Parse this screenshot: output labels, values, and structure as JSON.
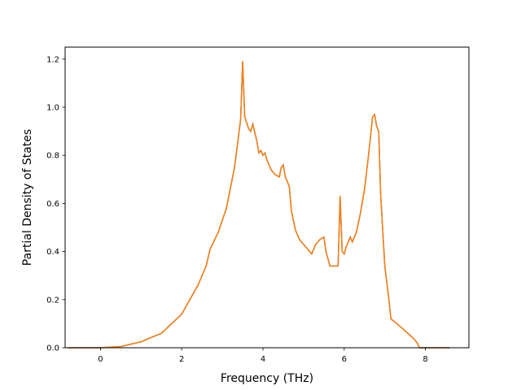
{
  "chart_data": {
    "type": "line",
    "title": "",
    "xlabel": "Frequency (THz)",
    "ylabel": "Partial Density of States",
    "xlim": [
      -0.87,
      9.07
    ],
    "ylim": [
      0.0,
      1.25
    ],
    "x_ticks": [
      0,
      2,
      4,
      6,
      8
    ],
    "x_tick_labels": [
      "0",
      "2",
      "4",
      "6",
      "8"
    ],
    "y_ticks": [
      0.0,
      0.2,
      0.4,
      0.6,
      0.8,
      1.0,
      1.2
    ],
    "y_tick_labels": [
      "0.0",
      "0.2",
      "0.4",
      "0.6",
      "0.8",
      "1.0",
      "1.2"
    ],
    "grid": false,
    "legend": "none",
    "colors": {
      "overlay_series": "#ff7f0e",
      "base_series": "#1f77b4"
    },
    "series": [
      {
        "x": [
          -0.8,
          0.0,
          0.5,
          1.0,
          1.5,
          2.0,
          2.4,
          2.6,
          2.7,
          2.9,
          3.1,
          3.3,
          3.45,
          3.5,
          3.55,
          3.65,
          3.7,
          3.75,
          3.85,
          3.9,
          3.95,
          4.0,
          4.05,
          4.1,
          4.2,
          4.3,
          4.4,
          4.45,
          4.5,
          4.55,
          4.65,
          4.7,
          4.8,
          4.9,
          5.0,
          5.1,
          5.2,
          5.3,
          5.4,
          5.5,
          5.55,
          5.65,
          5.75,
          5.85,
          5.9,
          5.95,
          6.0,
          6.05,
          6.15,
          6.2,
          6.3,
          6.4,
          6.5,
          6.6,
          6.7,
          6.75,
          6.8,
          6.85,
          6.9,
          7.0,
          7.1,
          7.15,
          7.3,
          7.5,
          7.7,
          7.8,
          7.85,
          7.9,
          8.0,
          8.6
        ],
        "y": [
          0.0,
          0.0,
          0.005,
          0.025,
          0.06,
          0.14,
          0.26,
          0.34,
          0.41,
          0.48,
          0.58,
          0.75,
          0.95,
          1.19,
          0.96,
          0.91,
          0.9,
          0.93,
          0.86,
          0.81,
          0.82,
          0.8,
          0.81,
          0.78,
          0.74,
          0.72,
          0.71,
          0.75,
          0.76,
          0.71,
          0.67,
          0.57,
          0.49,
          0.45,
          0.43,
          0.41,
          0.39,
          0.43,
          0.45,
          0.46,
          0.4,
          0.34,
          0.34,
          0.34,
          0.63,
          0.4,
          0.39,
          0.42,
          0.46,
          0.44,
          0.48,
          0.56,
          0.66,
          0.8,
          0.96,
          0.97,
          0.92,
          0.9,
          0.63,
          0.34,
          0.2,
          0.12,
          0.1,
          0.07,
          0.04,
          0.02,
          0.0,
          0.0,
          0.0,
          0.0
        ]
      }
    ]
  }
}
